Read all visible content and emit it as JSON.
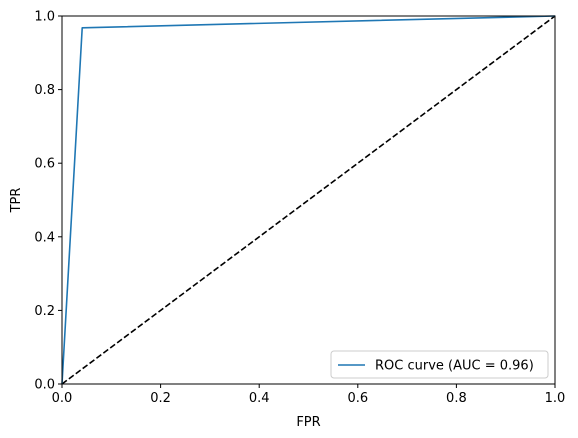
{
  "chart_data": {
    "type": "line",
    "xlabel": "FPR",
    "ylabel": "TPR",
    "xlim": [
      0,
      1
    ],
    "ylim": [
      0,
      1
    ],
    "x_ticks": [
      "0.0",
      "0.2",
      "0.4",
      "0.6",
      "0.8",
      "1.0"
    ],
    "y_ticks": [
      "0.0",
      "0.2",
      "0.4",
      "0.6",
      "0.8",
      "1.0"
    ],
    "grid": false,
    "legend_position": "bottom-right",
    "series": [
      {
        "name": "ROC curve (AUC = 0.96)",
        "x": [
          0.0,
          0.041,
          1.0
        ],
        "y": [
          0.0,
          0.968,
          1.0
        ],
        "color": "#1f77b4",
        "style": "solid"
      },
      {
        "x": [
          0.0,
          1.0
        ],
        "y": [
          0.0,
          1.0
        ],
        "color": "#000000",
        "style": "dashed"
      }
    ]
  }
}
